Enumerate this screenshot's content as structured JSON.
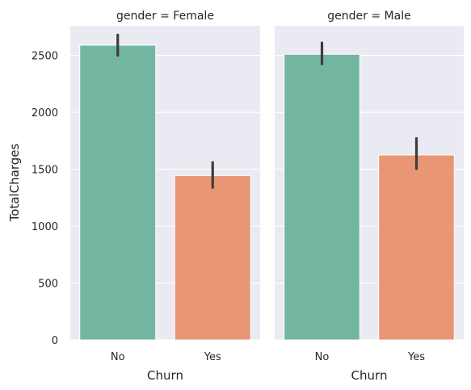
{
  "chart_data": {
    "type": "bar",
    "facets": [
      {
        "title": "gender = Female",
        "categories": [
          "No",
          "Yes"
        ],
        "values": [
          2590,
          1445
        ],
        "ci": [
          [
            2500,
            2680
          ],
          [
            1340,
            1560
          ]
        ]
      },
      {
        "title": "gender = Male",
        "categories": [
          "No",
          "Yes"
        ],
        "values": [
          2510,
          1625
        ],
        "ci": [
          [
            2425,
            2610
          ],
          [
            1505,
            1770
          ]
        ]
      }
    ],
    "xlabel": "Churn",
    "ylabel": "TotalCharges",
    "ylim": [
      0,
      2760
    ],
    "yticks": [
      "0",
      "500",
      "1000",
      "1500",
      "2000",
      "2500"
    ],
    "grid": true,
    "colors": {
      "bars": [
        "#72b6a1",
        "#e99675"
      ],
      "background": "#eaeaf2",
      "grid": "#ffffff",
      "errorbar": "#3d3d3d"
    }
  }
}
